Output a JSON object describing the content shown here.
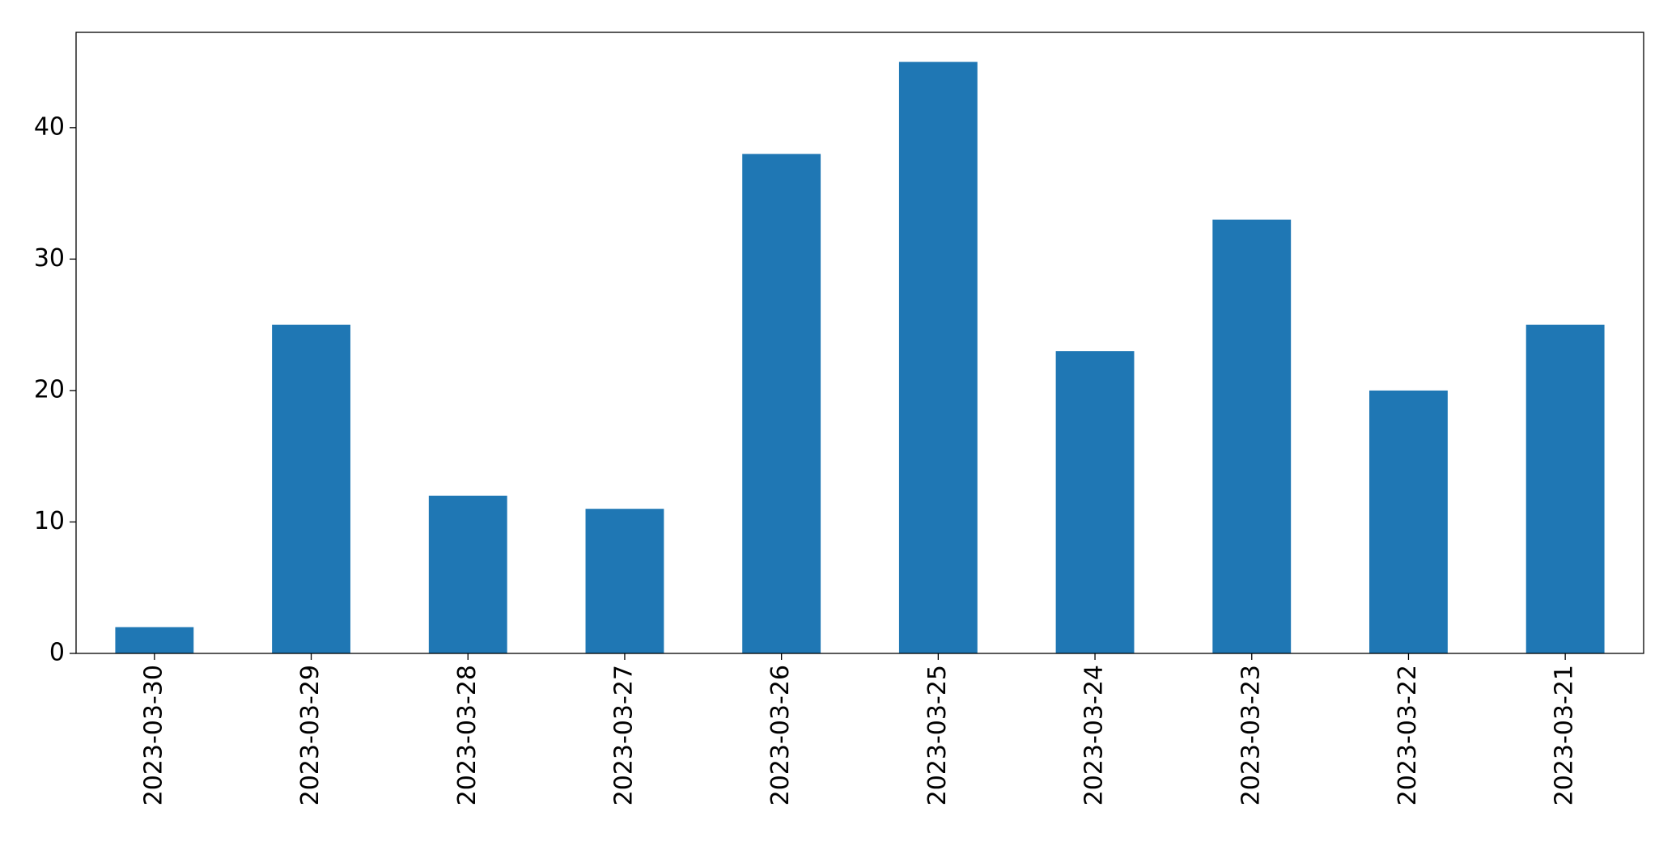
{
  "chart_data": {
    "type": "bar",
    "categories": [
      "2023-03-30",
      "2023-03-29",
      "2023-03-28",
      "2023-03-27",
      "2023-03-26",
      "2023-03-25",
      "2023-03-24",
      "2023-03-23",
      "2023-03-22",
      "2023-03-21"
    ],
    "values": [
      2,
      25,
      12,
      11,
      38,
      45,
      23,
      33,
      20,
      25
    ],
    "color": "#1f77b4",
    "ylim": [
      0,
      47.25
    ],
    "yticks": [
      0,
      10,
      20,
      30,
      40
    ],
    "grid": false
  }
}
